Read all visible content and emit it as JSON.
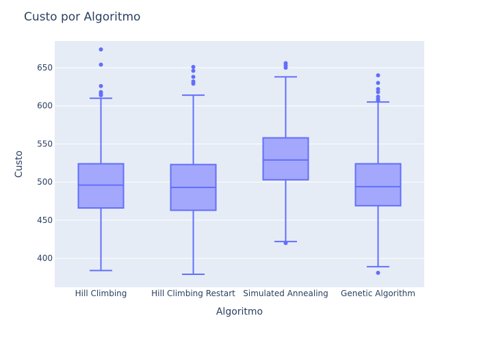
{
  "chart_data": {
    "type": "box",
    "title": "Custo por Algoritmo",
    "xlabel": "Algoritmo",
    "ylabel": "Custo",
    "ylim": [
      362,
      685
    ],
    "yticks": [
      400,
      450,
      500,
      550,
      600,
      650
    ],
    "grid": true,
    "legend": "none",
    "color": "#636efa",
    "box_fill": "#a3a8fc",
    "plot_bg": "#e5ecf6",
    "categories": [
      "Hill Climbing",
      "Hill Climbing Restart",
      "Simulated Annealing",
      "Genetic Algorithm"
    ],
    "boxes": [
      {
        "name": "Hill Climbing",
        "lower_whisker": 384,
        "q1": 466,
        "median": 496,
        "q3": 524,
        "upper_whisker": 610,
        "outliers": [
          674,
          654,
          626,
          618,
          616,
          614
        ]
      },
      {
        "name": "Hill Climbing Restart",
        "lower_whisker": 379,
        "q1": 463,
        "median": 493,
        "q3": 523,
        "upper_whisker": 614,
        "outliers": [
          651,
          646,
          638,
          632,
          629
        ]
      },
      {
        "name": "Simulated Annealing",
        "lower_whisker": 422,
        "q1": 503,
        "median": 529,
        "q3": 558,
        "upper_whisker": 638,
        "outliers": [
          656,
          653,
          650,
          420
        ]
      },
      {
        "name": "Genetic Algorithm",
        "lower_whisker": 389,
        "q1": 469,
        "median": 494,
        "q3": 524,
        "upper_whisker": 605,
        "outliers": [
          640,
          630,
          622,
          618,
          612,
          609,
          607,
          381
        ]
      }
    ]
  }
}
